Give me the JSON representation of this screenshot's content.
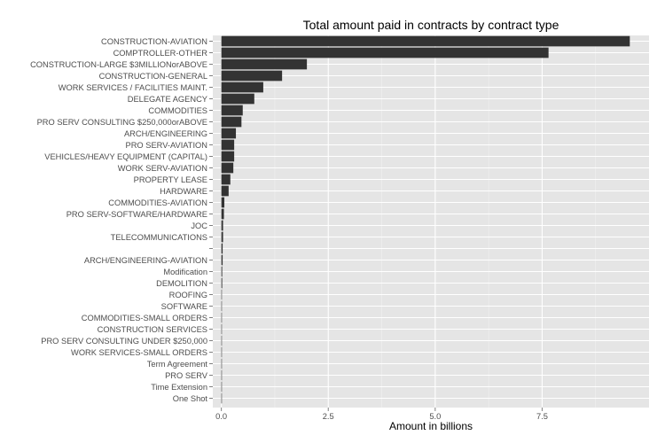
{
  "chart_data": {
    "type": "bar",
    "orientation": "horizontal",
    "title": "Total amount paid in contracts by contract type",
    "xlabel": "Amount in billions",
    "ylabel": "",
    "xlim": [
      -0.2,
      10.0
    ],
    "x_ticks": [
      0,
      2.5,
      5,
      7.5
    ],
    "x_tick_labels": [
      "0.0",
      "2.5",
      "5.0",
      "7.5"
    ],
    "grid": true,
    "legend": "none",
    "colors": {
      "panel": "#e5e5e5",
      "bar": "#333333",
      "grid_major": "#ffffff",
      "grid_minor": "#f0f0f0",
      "label": "#4d4d4d"
    },
    "categories": [
      "CONSTRUCTION-AVIATION",
      "COMPTROLLER-OTHER",
      "CONSTRUCTION-LARGE $3MILLIONorABOVE",
      "CONSTRUCTION-GENERAL",
      "WORK SERVICES / FACILITIES MAINT.",
      "DELEGATE AGENCY",
      "COMMODITIES",
      "PRO SERV CONSULTING $250,000orABOVE",
      "ARCH/ENGINEERING",
      "PRO SERV-AVIATION",
      "VEHICLES/HEAVY EQUIPMENT (CAPITAL)",
      "WORK SERV-AVIATION",
      "PROPERTY LEASE",
      "HARDWARE",
      "COMMODITIES-AVIATION",
      "PRO SERV-SOFTWARE/HARDWARE",
      "JOC",
      "TELECOMMUNICATIONS",
      "",
      "ARCH/ENGINEERING-AVIATION",
      "Modification",
      "DEMOLITION",
      "ROOFING",
      "SOFTWARE",
      "COMMODITIES-SMALL ORDERS",
      "CONSTRUCTION SERVICES",
      "PRO SERV CONSULTING UNDER $250,000",
      "WORK SERVICES-SMALL ORDERS",
      "Term Agreement",
      "PRO SERV",
      "Time Extension",
      "One Shot"
    ],
    "values": [
      9.55,
      7.65,
      2.0,
      1.42,
      0.98,
      0.77,
      0.5,
      0.47,
      0.34,
      0.3,
      0.3,
      0.28,
      0.21,
      0.17,
      0.07,
      0.06,
      0.04,
      0.04,
      0.03,
      0.03,
      0.02,
      0.02,
      0.01,
      0.01,
      0.01,
      0.01,
      0.01,
      0.005,
      0.005,
      0.004,
      0.003,
      0.002
    ]
  }
}
